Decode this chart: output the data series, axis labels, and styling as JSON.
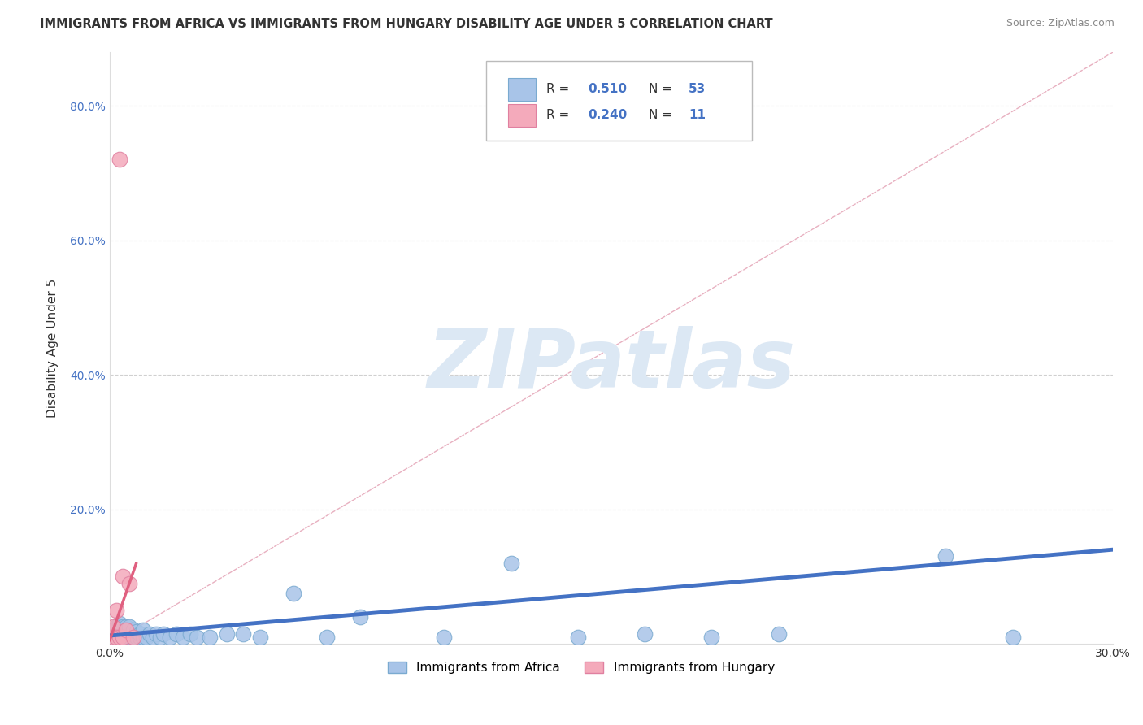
{
  "title": "IMMIGRANTS FROM AFRICA VS IMMIGRANTS FROM HUNGARY DISABILITY AGE UNDER 5 CORRELATION CHART",
  "source": "Source: ZipAtlas.com",
  "xlabel": "Immigrants from Africa",
  "ylabel": "Disability Age Under 5",
  "xlim": [
    0.0,
    0.3
  ],
  "ylim": [
    0.0,
    0.88
  ],
  "R_africa": 0.51,
  "N_africa": 53,
  "R_hungary": 0.24,
  "N_hungary": 11,
  "africa_color": "#A8C4E8",
  "africa_edge_color": "#7AAAD0",
  "hungary_color": "#F4AABB",
  "hungary_edge_color": "#E080A0",
  "africa_line_color": "#4472C4",
  "hungary_line_color": "#E06080",
  "diag_line_color": "#E8B0C0",
  "background_color": "#ffffff",
  "grid_color": "#d0d0d0",
  "watermark_text": "ZIPatlas",
  "watermark_color": "#dce8f4",
  "africa_x": [
    0.001,
    0.001,
    0.002,
    0.002,
    0.002,
    0.003,
    0.003,
    0.003,
    0.003,
    0.004,
    0.004,
    0.004,
    0.005,
    0.005,
    0.005,
    0.006,
    0.006,
    0.006,
    0.007,
    0.007,
    0.007,
    0.008,
    0.008,
    0.009,
    0.009,
    0.01,
    0.01,
    0.011,
    0.012,
    0.013,
    0.014,
    0.015,
    0.016,
    0.018,
    0.02,
    0.022,
    0.024,
    0.026,
    0.03,
    0.035,
    0.04,
    0.045,
    0.055,
    0.065,
    0.075,
    0.1,
    0.12,
    0.14,
    0.16,
    0.18,
    0.2,
    0.25,
    0.27
  ],
  "africa_y": [
    0.01,
    0.02,
    0.01,
    0.015,
    0.025,
    0.01,
    0.015,
    0.02,
    0.03,
    0.01,
    0.015,
    0.025,
    0.01,
    0.015,
    0.025,
    0.01,
    0.015,
    0.025,
    0.01,
    0.015,
    0.02,
    0.01,
    0.018,
    0.01,
    0.015,
    0.01,
    0.02,
    0.01,
    0.015,
    0.01,
    0.015,
    0.01,
    0.015,
    0.01,
    0.015,
    0.01,
    0.015,
    0.01,
    0.01,
    0.015,
    0.015,
    0.01,
    0.075,
    0.01,
    0.04,
    0.01,
    0.12,
    0.01,
    0.015,
    0.01,
    0.015,
    0.13,
    0.01
  ],
  "hungary_x": [
    0.001,
    0.001,
    0.002,
    0.002,
    0.003,
    0.003,
    0.004,
    0.004,
    0.005,
    0.006,
    0.007
  ],
  "hungary_y": [
    0.01,
    0.025,
    0.01,
    0.05,
    0.01,
    0.72,
    0.01,
    0.1,
    0.02,
    0.09,
    0.01
  ],
  "africa_trend_x0": 0.0,
  "africa_trend_x1": 0.3,
  "africa_trend_y0": 0.012,
  "africa_trend_y1": 0.14,
  "hungary_trend_x0": 0.0,
  "hungary_trend_x1": 0.008,
  "hungary_trend_y0": 0.005,
  "hungary_trend_y1": 0.12
}
